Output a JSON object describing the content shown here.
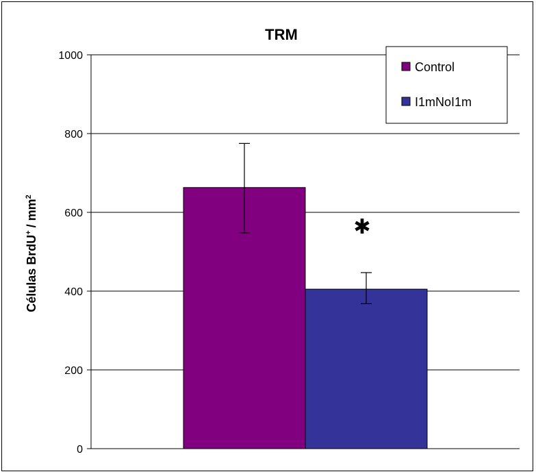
{
  "chart_data": {
    "type": "bar",
    "title": "TRM",
    "ylabel": "Células BrdU",
    "ylabel_sup": "+",
    "ylabel_unit": "/ mm",
    "ylabel_unit_sup": "2",
    "xlabel": "",
    "ylim": [
      0,
      1000
    ],
    "yticks": [
      0,
      200,
      400,
      600,
      800,
      1000
    ],
    "grid": true,
    "legend_position": "top-right",
    "series": [
      {
        "name": "Control",
        "value": 663,
        "error_low": 548,
        "error_high": 775,
        "color": "#800080"
      },
      {
        "name": "I1mNoI1m",
        "value": 405,
        "error_low": 368,
        "error_high": 447,
        "color": "#333399"
      }
    ],
    "annotation": {
      "text": "✱",
      "series_index": 1,
      "y": 565
    }
  }
}
